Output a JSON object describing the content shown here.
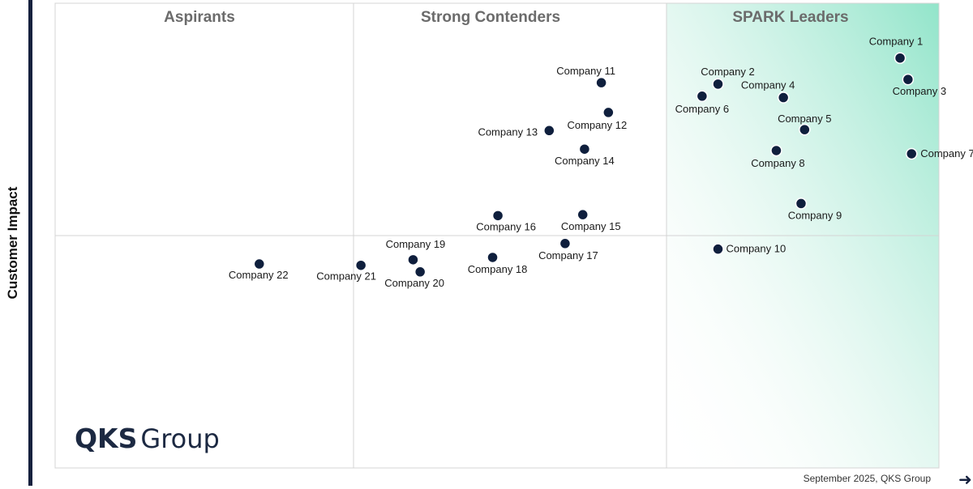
{
  "chart_data": {
    "type": "scatter",
    "ylabel": "Customer Impact",
    "quadrants": [
      {
        "name": "Aspirants"
      },
      {
        "name": "Strong Contenders"
      },
      {
        "name": "SPARK Leaders"
      }
    ],
    "points": [
      {
        "name": "Company 1",
        "x": 95.6,
        "y": 88.2
      },
      {
        "name": "Company 2",
        "x": 75.0,
        "y": 82.6
      },
      {
        "name": "Company 3",
        "x": 96.5,
        "y": 83.6
      },
      {
        "name": "Company 4",
        "x": 82.4,
        "y": 79.7
      },
      {
        "name": "Company 5",
        "x": 84.8,
        "y": 72.8
      },
      {
        "name": "Company 6",
        "x": 73.2,
        "y": 80.0
      },
      {
        "name": "Company 7",
        "x": 96.9,
        "y": 67.6
      },
      {
        "name": "Company 8",
        "x": 81.6,
        "y": 68.3
      },
      {
        "name": "Company 9",
        "x": 84.4,
        "y": 56.9
      },
      {
        "name": "Company 10",
        "x": 75.0,
        "y": 47.1
      },
      {
        "name": "Company 11",
        "x": 61.8,
        "y": 82.9
      },
      {
        "name": "Company 12",
        "x": 62.6,
        "y": 76.5
      },
      {
        "name": "Company 13",
        "x": 55.9,
        "y": 72.6
      },
      {
        "name": "Company 14",
        "x": 59.9,
        "y": 68.6
      },
      {
        "name": "Company 15",
        "x": 59.7,
        "y": 54.5
      },
      {
        "name": "Company 16",
        "x": 50.1,
        "y": 54.3
      },
      {
        "name": "Company 17",
        "x": 57.7,
        "y": 48.3
      },
      {
        "name": "Company 18",
        "x": 49.5,
        "y": 45.3
      },
      {
        "name": "Company 19",
        "x": 40.5,
        "y": 44.8
      },
      {
        "name": "Company 20",
        "x": 41.3,
        "y": 42.2
      },
      {
        "name": "Company 21",
        "x": 34.6,
        "y": 43.6
      },
      {
        "name": "Company 22",
        "x": 23.1,
        "y": 43.9
      }
    ],
    "xlim": [
      0,
      100
    ],
    "ylim": [
      0,
      100
    ],
    "grid": false
  },
  "logo": {
    "bold": "QKS",
    "light": "Group"
  },
  "footer": "September 2025, QKS Group",
  "colors": {
    "point": "#0f1f3d",
    "leaders_gradient": "#8ce3c7",
    "border": "#d4d4d4",
    "axis": "#16213e"
  }
}
